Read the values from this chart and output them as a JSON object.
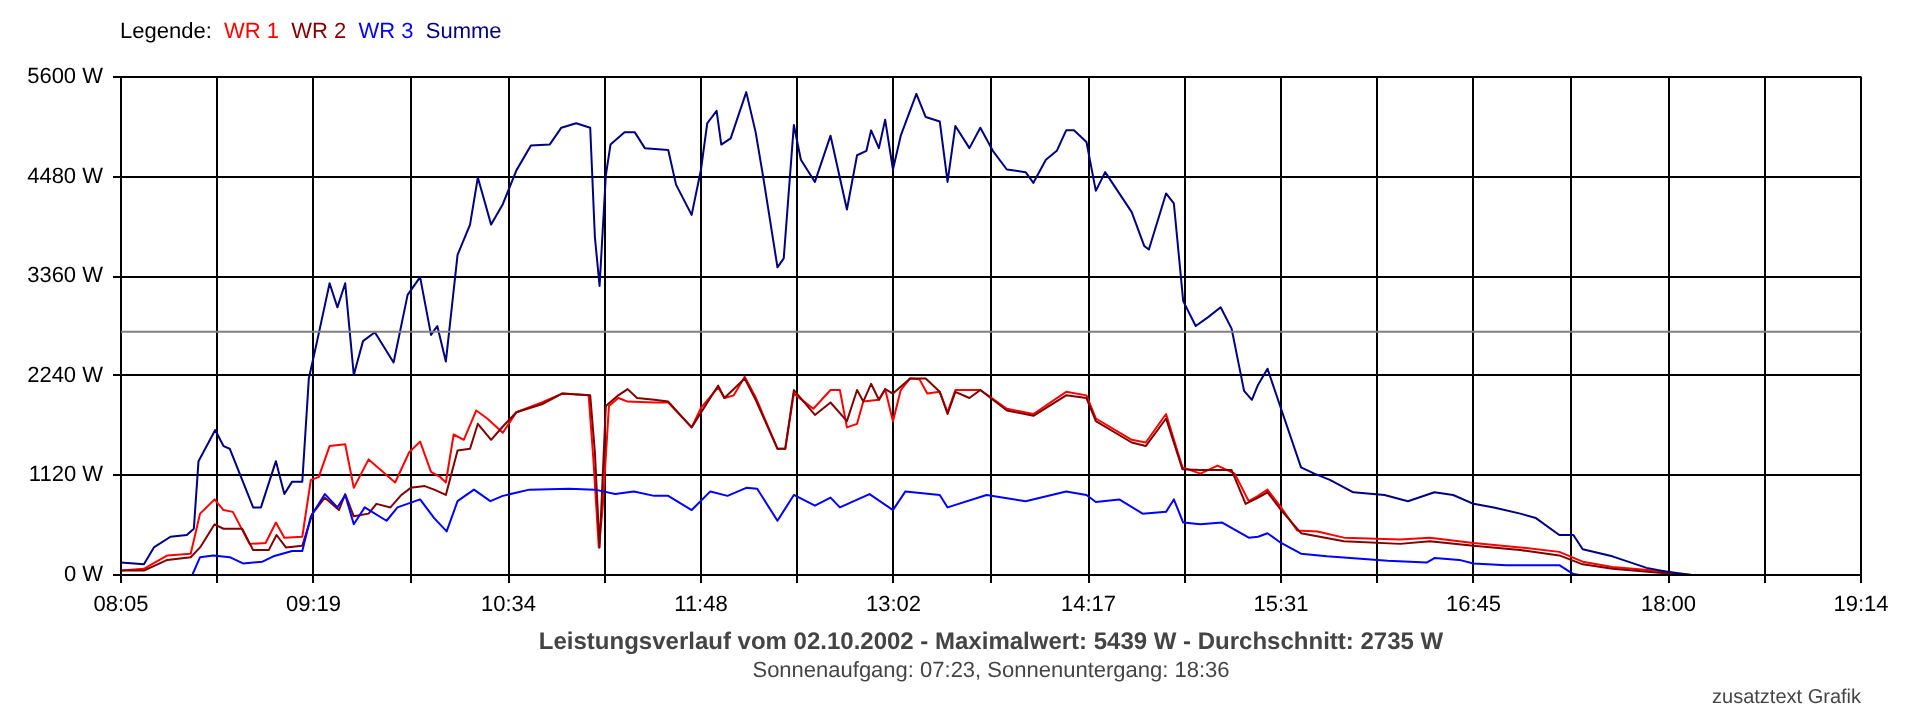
{
  "chart_data": {
    "type": "line",
    "title": "Leistungsverlauf vom 02.10.2002 - Maximalwert: 5439 W - Durchschnitt: 2735 W",
    "subtitle": "Sonnenaufgang: 07:23, Sonnenuntergang: 18:36",
    "legend_title": "Legende:",
    "annotations": [
      "zusatztext Grafik"
    ],
    "xlim": [
      8.0833,
      19.2333
    ],
    "xticks": [
      {
        "value": 8.0833,
        "label": "08:05"
      },
      {
        "value": 8.7,
        "label": null
      },
      {
        "value": 9.3167,
        "label": "09:19"
      },
      {
        "value": 9.94,
        "label": null
      },
      {
        "value": 10.5667,
        "label": "10:34"
      },
      {
        "value": 11.18,
        "label": null
      },
      {
        "value": 11.8,
        "label": "11:48"
      },
      {
        "value": 12.42,
        "label": null
      },
      {
        "value": 13.0333,
        "label": "13:02"
      },
      {
        "value": 13.66,
        "label": null
      },
      {
        "value": 14.2833,
        "label": "14:17"
      },
      {
        "value": 14.9,
        "label": null
      },
      {
        "value": 15.5167,
        "label": "15:31"
      },
      {
        "value": 16.13,
        "label": null
      },
      {
        "value": 16.75,
        "label": "16:45"
      },
      {
        "value": 17.37,
        "label": null
      },
      {
        "value": 18.0,
        "label": "18:00"
      },
      {
        "value": 18.62,
        "label": null
      },
      {
        "value": 19.2333,
        "label": "19:14"
      }
    ],
    "ylim": [
      0,
      5600
    ],
    "yticks": [
      {
        "value": 0,
        "label": "0 W"
      },
      {
        "value": 1120,
        "label": "1120 W"
      },
      {
        "value": 2240,
        "label": "2240 W"
      },
      {
        "value": 3360,
        "label": "3360 W"
      },
      {
        "value": 4480,
        "label": "4480 W"
      },
      {
        "value": 5600,
        "label": "5600 W"
      }
    ],
    "grid": true,
    "marker": "none",
    "line_style": "solid",
    "ref_lines": [
      {
        "axis": "y",
        "value": 2735,
        "color": "#808080"
      }
    ],
    "series": [
      {
        "name": "WR 1",
        "color": "#ff0000",
        "x": [
          8.0833,
          8.23,
          8.38,
          8.53,
          8.59,
          8.683,
          8.74,
          8.8,
          8.907,
          9.01,
          9.076,
          9.13,
          9.245,
          9.3,
          9.35,
          9.42,
          9.52,
          9.575,
          9.67,
          9.84,
          9.93,
          10.0,
          10.07,
          10.13,
          10.165,
          10.215,
          10.28,
          10.36,
          10.43,
          10.53,
          10.617,
          10.78,
          10.91,
          11.08,
          11.11,
          11.145,
          11.17,
          11.21,
          11.27,
          11.33,
          11.5,
          11.59,
          11.74,
          11.8,
          11.91,
          11.95,
          12.01,
          12.08,
          12.15,
          12.29,
          12.34,
          12.395,
          12.52,
          12.63,
          12.69,
          12.735,
          12.8,
          12.84,
          12.94,
          12.98,
          13.03,
          13.08,
          13.14,
          13.2,
          13.25,
          13.33,
          13.38,
          13.43,
          13.59,
          13.76,
          13.93,
          14.14,
          14.27,
          14.33,
          14.56,
          14.65,
          14.78,
          14.885,
          15.0,
          15.11,
          15.22,
          15.31,
          15.37,
          15.43,
          15.517,
          15.62,
          15.75,
          15.92,
          16.28,
          16.47,
          16.75,
          17.05,
          17.3,
          17.45,
          17.64,
          17.98,
          18.07
        ],
        "values": [
          50,
          70,
          220,
          240,
          690,
          850,
          730,
          710,
          350,
          360,
          590,
          420,
          430,
          1070,
          1100,
          1450,
          1470,
          980,
          1300,
          1040,
          1380,
          1500,
          1160,
          1100,
          1040,
          1580,
          1520,
          1850,
          1760,
          1600,
          1830,
          1940,
          2040,
          2020,
          1310,
          310,
          760,
          1900,
          1990,
          1950,
          1940,
          1940,
          1660,
          1880,
          2110,
          1990,
          2020,
          2230,
          2000,
          1420,
          1420,
          2040,
          1870,
          2080,
          2080,
          1660,
          1700,
          1950,
          1970,
          2090,
          1730,
          2080,
          2210,
          2200,
          2040,
          2060,
          1830,
          2080,
          2080,
          1870,
          1810,
          2060,
          2020,
          1760,
          1520,
          1490,
          1810,
          1210,
          1140,
          1230,
          1140,
          830,
          890,
          960,
          760,
          500,
          490,
          420,
          400,
          420,
          360,
          310,
          260,
          150,
          90,
          40,
          10
        ]
      },
      {
        "name": "WR 2",
        "color": "#800000",
        "x": [
          8.0833,
          8.23,
          8.38,
          8.53,
          8.59,
          8.683,
          8.74,
          8.86,
          8.93,
          9.03,
          9.08,
          9.14,
          9.245,
          9.31,
          9.39,
          9.48,
          9.52,
          9.575,
          9.67,
          9.72,
          9.81,
          9.88,
          9.94,
          10.03,
          10.09,
          10.165,
          10.24,
          10.32,
          10.37,
          10.455,
          10.53,
          10.617,
          10.78,
          10.91,
          11.09,
          11.12,
          11.15,
          11.19,
          11.27,
          11.33,
          11.39,
          11.5,
          11.59,
          11.74,
          11.91,
          11.95,
          12.08,
          12.15,
          12.29,
          12.34,
          12.395,
          12.53,
          12.63,
          12.735,
          12.8,
          12.84,
          12.89,
          12.94,
          12.98,
          13.03,
          13.14,
          13.24,
          13.33,
          13.38,
          13.43,
          13.52,
          13.59,
          13.76,
          13.93,
          14.14,
          14.27,
          14.33,
          14.56,
          14.65,
          14.78,
          14.885,
          15.0,
          15.2,
          15.29,
          15.37,
          15.43,
          15.517,
          15.645,
          15.92,
          16.28,
          16.47,
          16.75,
          17.05,
          17.3,
          17.45,
          17.64,
          17.98,
          18.15
        ],
        "values": [
          50,
          50,
          170,
          200,
          310,
          570,
          520,
          520,
          280,
          280,
          450,
          310,
          330,
          690,
          870,
          730,
          910,
          660,
          690,
          800,
          760,
          900,
          980,
          1000,
          960,
          900,
          1400,
          1420,
          1700,
          1520,
          1670,
          1830,
          1920,
          2040,
          2020,
          1380,
          310,
          1900,
          2020,
          2090,
          1990,
          1970,
          1950,
          1660,
          2130,
          1990,
          2210,
          1970,
          1420,
          1420,
          2080,
          1800,
          1940,
          1730,
          2080,
          1950,
          2150,
          1970,
          2090,
          2040,
          2210,
          2210,
          2060,
          1810,
          2060,
          1990,
          2080,
          1850,
          1790,
          2020,
          1990,
          1730,
          1490,
          1450,
          1760,
          1190,
          1180,
          1180,
          800,
          870,
          930,
          730,
          470,
          380,
          350,
          380,
          330,
          280,
          220,
          120,
          70,
          20,
          0
        ]
      },
      {
        "name": "WR 3",
        "color": "#0000ff",
        "x": [
          8.54,
          8.59,
          8.675,
          8.78,
          8.865,
          8.99,
          9.06,
          9.18,
          9.245,
          9.3,
          9.39,
          9.47,
          9.52,
          9.575,
          9.645,
          9.785,
          9.855,
          10.0,
          10.09,
          10.17,
          10.24,
          10.345,
          10.45,
          10.53,
          10.7,
          10.955,
          11.12,
          11.25,
          11.37,
          11.5,
          11.59,
          11.74,
          11.86,
          11.97,
          12.09,
          12.16,
          12.29,
          12.395,
          12.53,
          12.63,
          12.69,
          12.88,
          13.03,
          13.11,
          13.33,
          13.38,
          13.63,
          13.88,
          14.14,
          14.27,
          14.33,
          14.48,
          14.63,
          14.78,
          14.83,
          14.89,
          15.0,
          15.14,
          15.31,
          15.37,
          15.43,
          15.517,
          15.645,
          15.81,
          16.2,
          16.45,
          16.5,
          16.66,
          16.75,
          16.96,
          17.3,
          17.39,
          17.43
        ],
        "values": [
          0,
          200,
          220,
          200,
          130,
          150,
          210,
          270,
          270,
          660,
          910,
          760,
          900,
          570,
          760,
          610,
          760,
          850,
          640,
          490,
          830,
          960,
          830,
          890,
          960,
          970,
          960,
          910,
          940,
          890,
          890,
          730,
          940,
          890,
          980,
          970,
          610,
          900,
          780,
          870,
          760,
          910,
          730,
          940,
          900,
          760,
          900,
          830,
          940,
          900,
          820,
          850,
          690,
          710,
          850,
          590,
          570,
          590,
          420,
          430,
          470,
          360,
          240,
          210,
          160,
          140,
          190,
          170,
          130,
          110,
          110,
          10,
          0
        ]
      },
      {
        "name": "Summe",
        "color": "#000080",
        "x": [
          8.0833,
          8.23,
          8.294,
          8.4,
          8.505,
          8.55,
          8.58,
          8.687,
          8.74,
          8.78,
          8.93,
          8.98,
          9.076,
          9.13,
          9.18,
          9.245,
          9.287,
          9.34,
          9.42,
          9.47,
          9.52,
          9.575,
          9.634,
          9.71,
          9.83,
          9.92,
          10.0,
          10.07,
          10.11,
          10.165,
          10.24,
          10.32,
          10.37,
          10.455,
          10.53,
          10.617,
          10.71,
          10.83,
          10.905,
          11.0,
          11.09,
          11.12,
          11.15,
          11.19,
          11.22,
          11.31,
          11.375,
          11.44,
          11.59,
          11.64,
          11.74,
          11.8,
          11.84,
          11.9,
          11.93,
          11.99,
          12.09,
          12.15,
          12.2,
          12.29,
          12.33,
          12.395,
          12.44,
          12.53,
          12.63,
          12.735,
          12.8,
          12.86,
          12.89,
          12.94,
          12.98,
          13.03,
          13.08,
          13.18,
          13.24,
          13.33,
          13.38,
          13.43,
          13.52,
          13.59,
          13.67,
          13.76,
          13.88,
          13.93,
          14.01,
          14.08,
          14.14,
          14.19,
          14.27,
          14.33,
          14.39,
          14.56,
          14.64,
          14.67,
          14.78,
          14.83,
          14.89,
          14.97,
          15.05,
          15.13,
          15.2,
          15.28,
          15.33,
          15.37,
          15.43,
          15.517,
          15.645,
          15.73,
          15.83,
          15.98,
          16.18,
          16.33,
          16.5,
          16.62,
          16.75,
          16.88,
          17.05,
          17.15,
          17.3,
          17.39,
          17.45,
          17.64,
          17.86,
          17.98,
          18.15
        ],
        "values": [
          140,
          120,
          310,
          430,
          450,
          520,
          1280,
          1630,
          1450,
          1420,
          760,
          760,
          1280,
          910,
          1050,
          1050,
          2210,
          2630,
          3280,
          3010,
          3280,
          2250,
          2630,
          2730,
          2390,
          3150,
          3350,
          2700,
          2800,
          2400,
          3600,
          3940,
          4470,
          3940,
          4170,
          4550,
          4830,
          4840,
          5030,
          5080,
          5030,
          3800,
          3250,
          4490,
          4840,
          4980,
          4980,
          4800,
          4780,
          4390,
          4050,
          4560,
          5080,
          5220,
          4840,
          4910,
          5430,
          4980,
          4460,
          3460,
          3560,
          5060,
          4670,
          4420,
          4940,
          4110,
          4720,
          4770,
          5000,
          4800,
          5120,
          4560,
          4940,
          5410,
          5150,
          5100,
          4420,
          5050,
          4800,
          5030,
          4770,
          4560,
          4530,
          4410,
          4670,
          4770,
          5000,
          5000,
          4870,
          4320,
          4530,
          4080,
          3700,
          3660,
          4290,
          4180,
          3080,
          2800,
          2900,
          3010,
          2770,
          2070,
          1970,
          2140,
          2320,
          1870,
          1210,
          1140,
          1070,
          930,
          900,
          830,
          930,
          900,
          800,
          760,
          690,
          640,
          450,
          450,
          290,
          210,
          80,
          40,
          0
        ]
      }
    ]
  }
}
